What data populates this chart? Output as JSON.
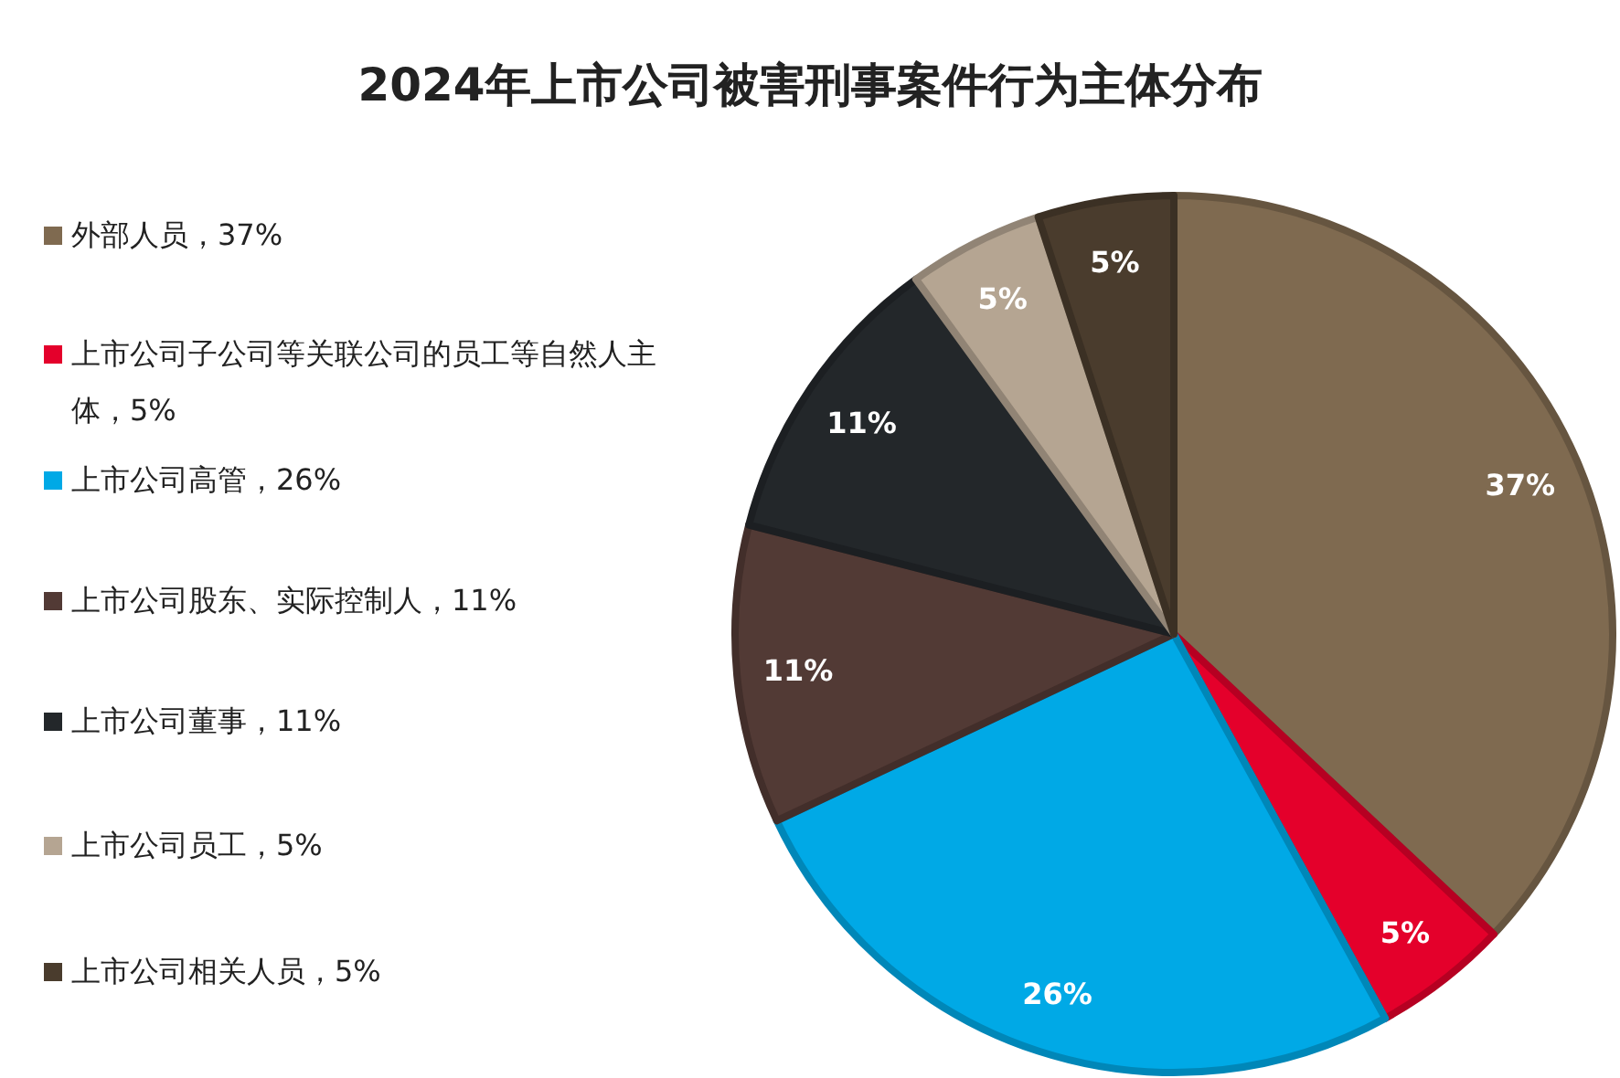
{
  "chart_data": {
    "type": "pie",
    "title": "2024年上市公司被害刑事案件行为主体分布",
    "categories": [
      "外部人员，37%",
      "上市公司子公司等关联公司的员工等自然人主体，5%",
      "上市公司高管，26%",
      "上市公司股东、实际控制人，11%",
      "上市公司董事，11%",
      "上市公司员工，5%",
      "上市公司相关人员，5%"
    ],
    "values": [
      37,
      5,
      26,
      11,
      11,
      5,
      5
    ],
    "value_labels": [
      "37%",
      "5%",
      "26%",
      "11%",
      "11%",
      "5%",
      "5%"
    ],
    "colors": [
      "#7f6a50",
      "#e4002b",
      "#00a9e6",
      "#523a35",
      "#23272a",
      "#b5a592",
      "#4a3c2d"
    ],
    "legend": "left"
  }
}
